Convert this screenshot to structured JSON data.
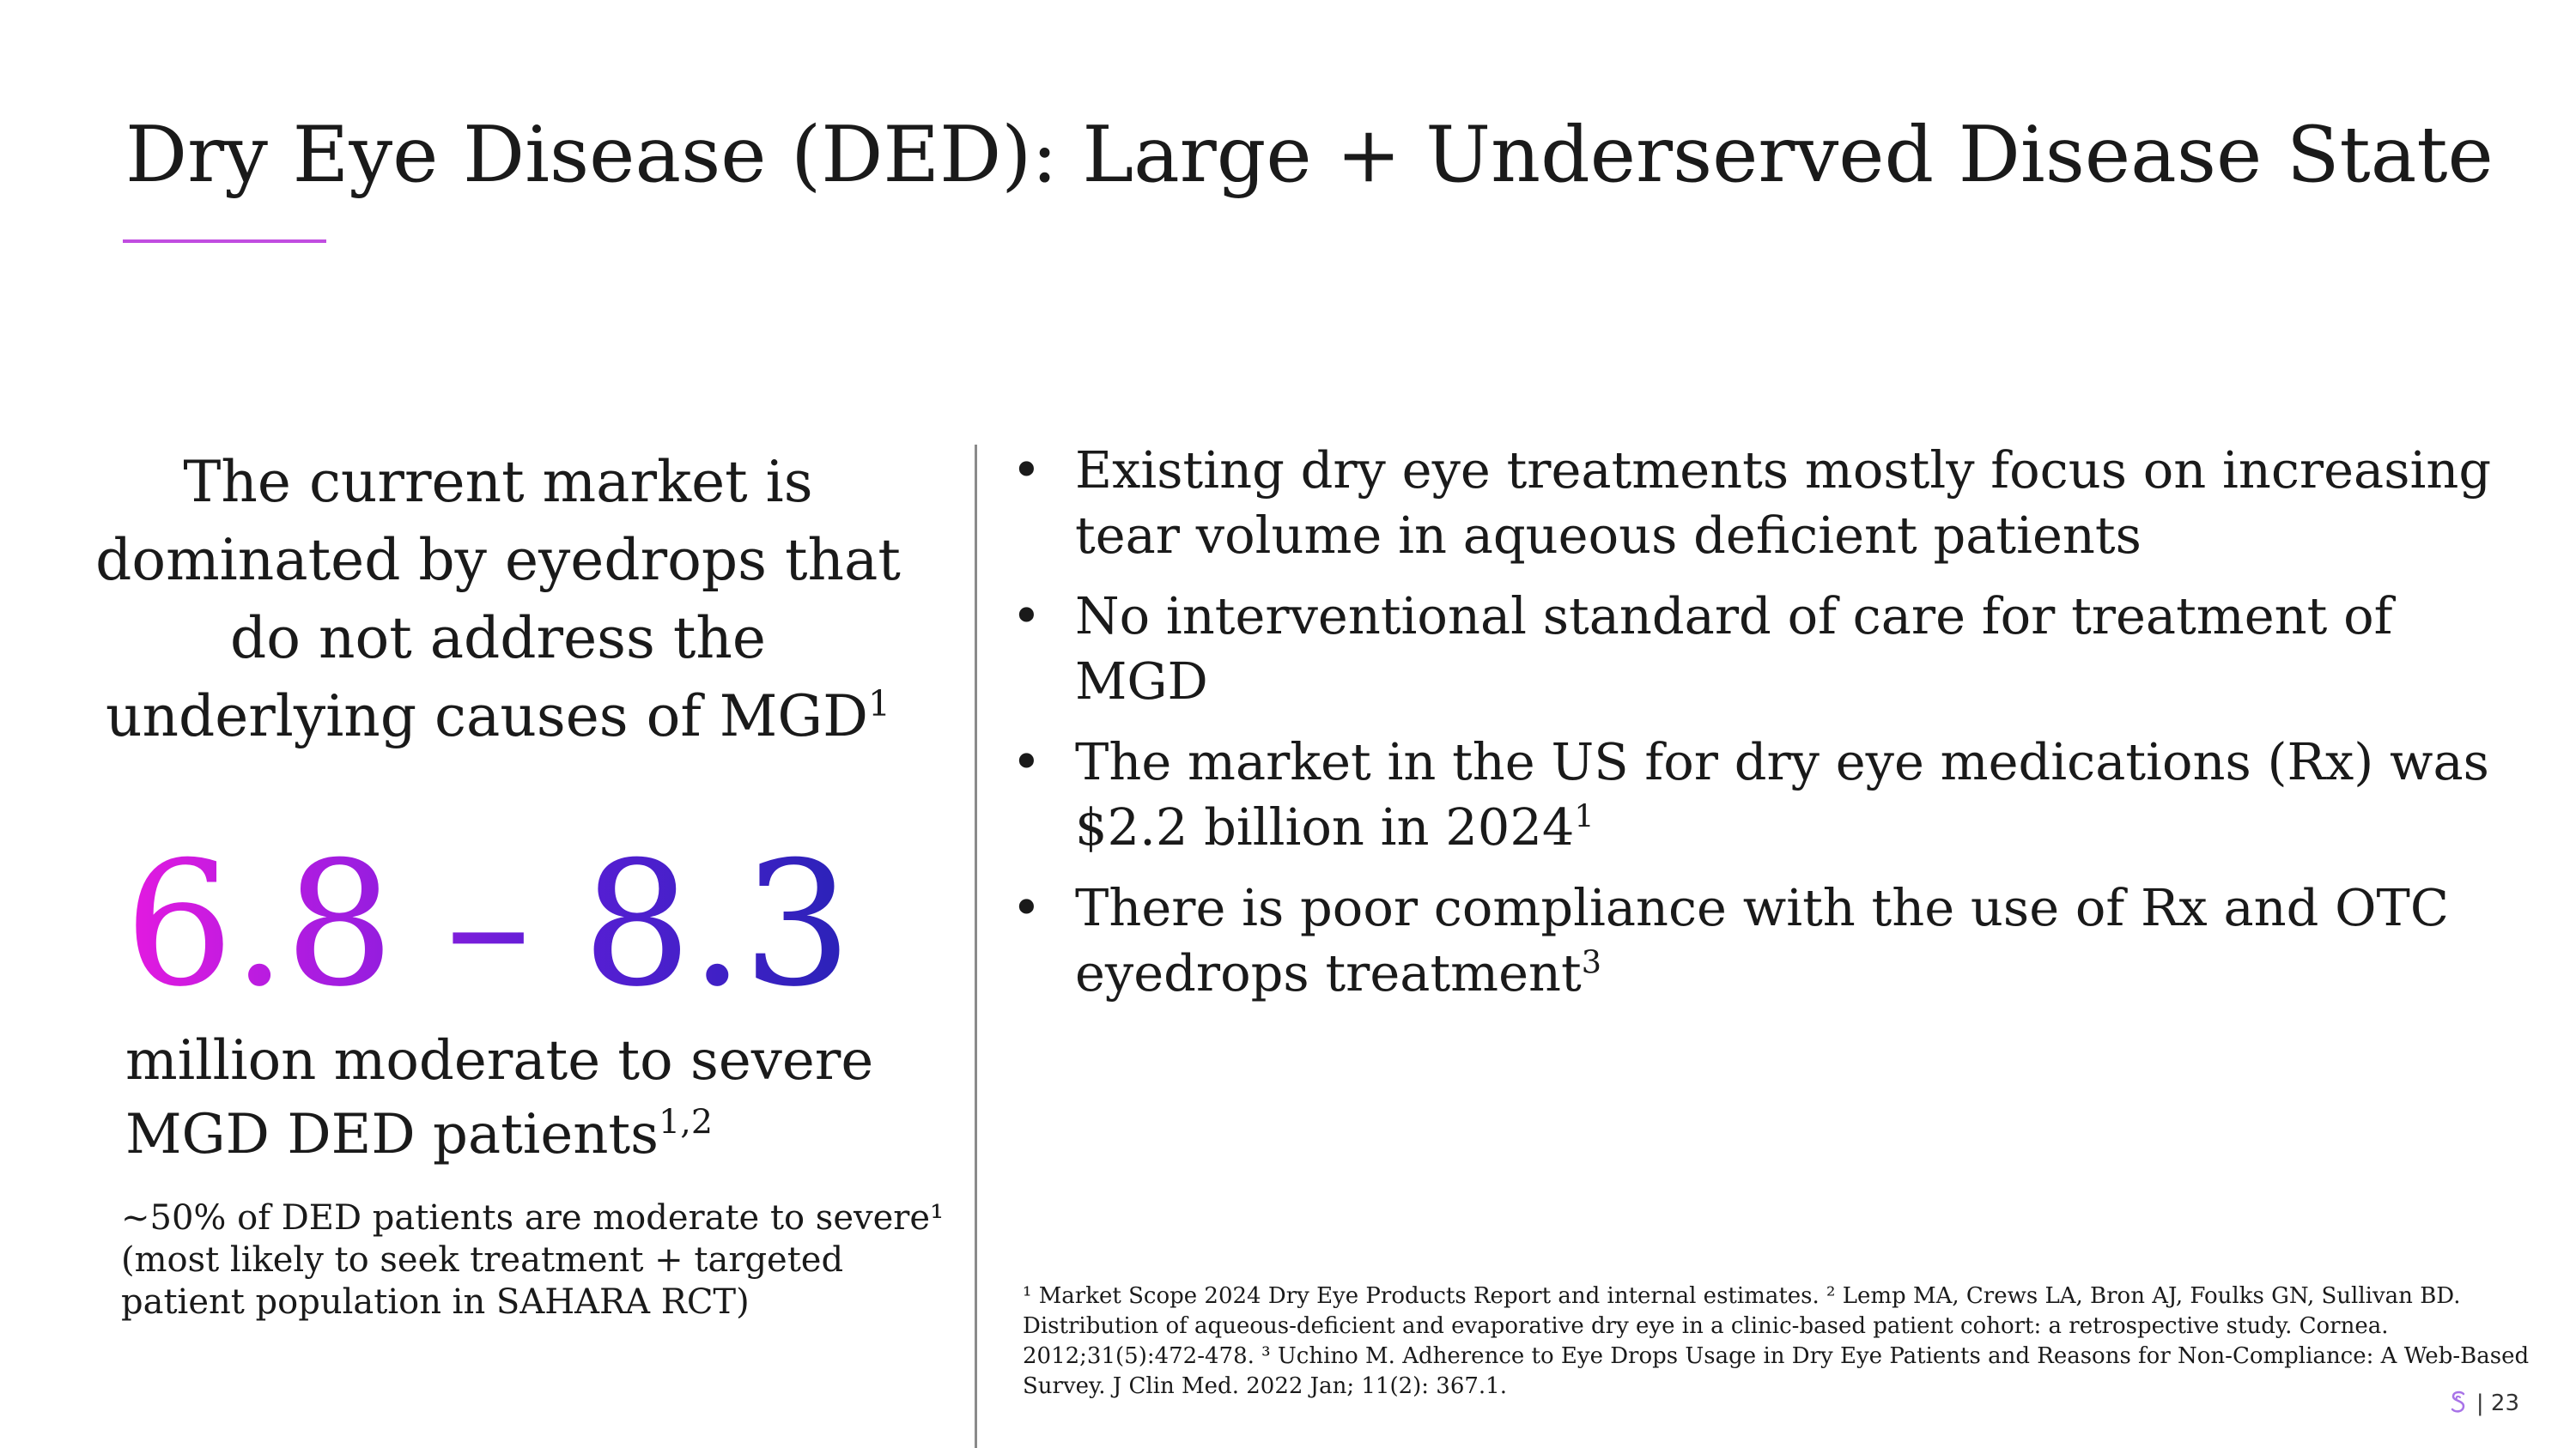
{
  "slide": {
    "title": "Dry Eye Disease (DED): Large + Underserved Disease State",
    "accent_color": "#c14de0"
  },
  "left_panel": {
    "heading": "The current market is dominated by eyedrops that do not address the underlying causes of MGD",
    "heading_sup": "1",
    "stat_value": "6.8 – 8.3",
    "stat_gradient": [
      "#e41ae0",
      "#2a22b8"
    ],
    "stat_label": "million moderate to severe MGD DED patients",
    "stat_label_sup": "1,2",
    "note": "~50% of DED patients are moderate to severe¹ (most likely to seek treatment + targeted patient population in SAHARA RCT)"
  },
  "bullets": [
    {
      "text": "Existing dry eye treatments mostly focus on increasing tear volume in aqueous deficient patients",
      "sup": ""
    },
    {
      "text": "No interventional standard of care for treatment of MGD",
      "sup": ""
    },
    {
      "text": "The market in the US for dry eye medications (Rx) was $2.2 billion in 2024",
      "sup": "1"
    },
    {
      "text": "There is poor compliance with the use of Rx and OTC eyedrops treatment",
      "sup": "3"
    }
  ],
  "bullet_glyph": "•",
  "footnotes": "¹ Market Scope 2024 Dry Eye Products Report and internal estimates.  ² Lemp MA, Crews LA, Bron AJ, Foulks GN, Sullivan BD. Distribution of aqueous-deficient and evaporative dry eye in a clinic-based patient cohort: a retrospective study. Cornea. 2012;31(5):472-478.  ³ Uchino M. Adherence to Eye Drops Usage in Dry Eye Patients and Reasons for Non-Compliance: A Web-Based Survey. J Clin Med. 2022 Jan; 11(2): 367.1.",
  "footer": {
    "logo_icon": "company-logo-icon",
    "page_number": "| 23"
  }
}
